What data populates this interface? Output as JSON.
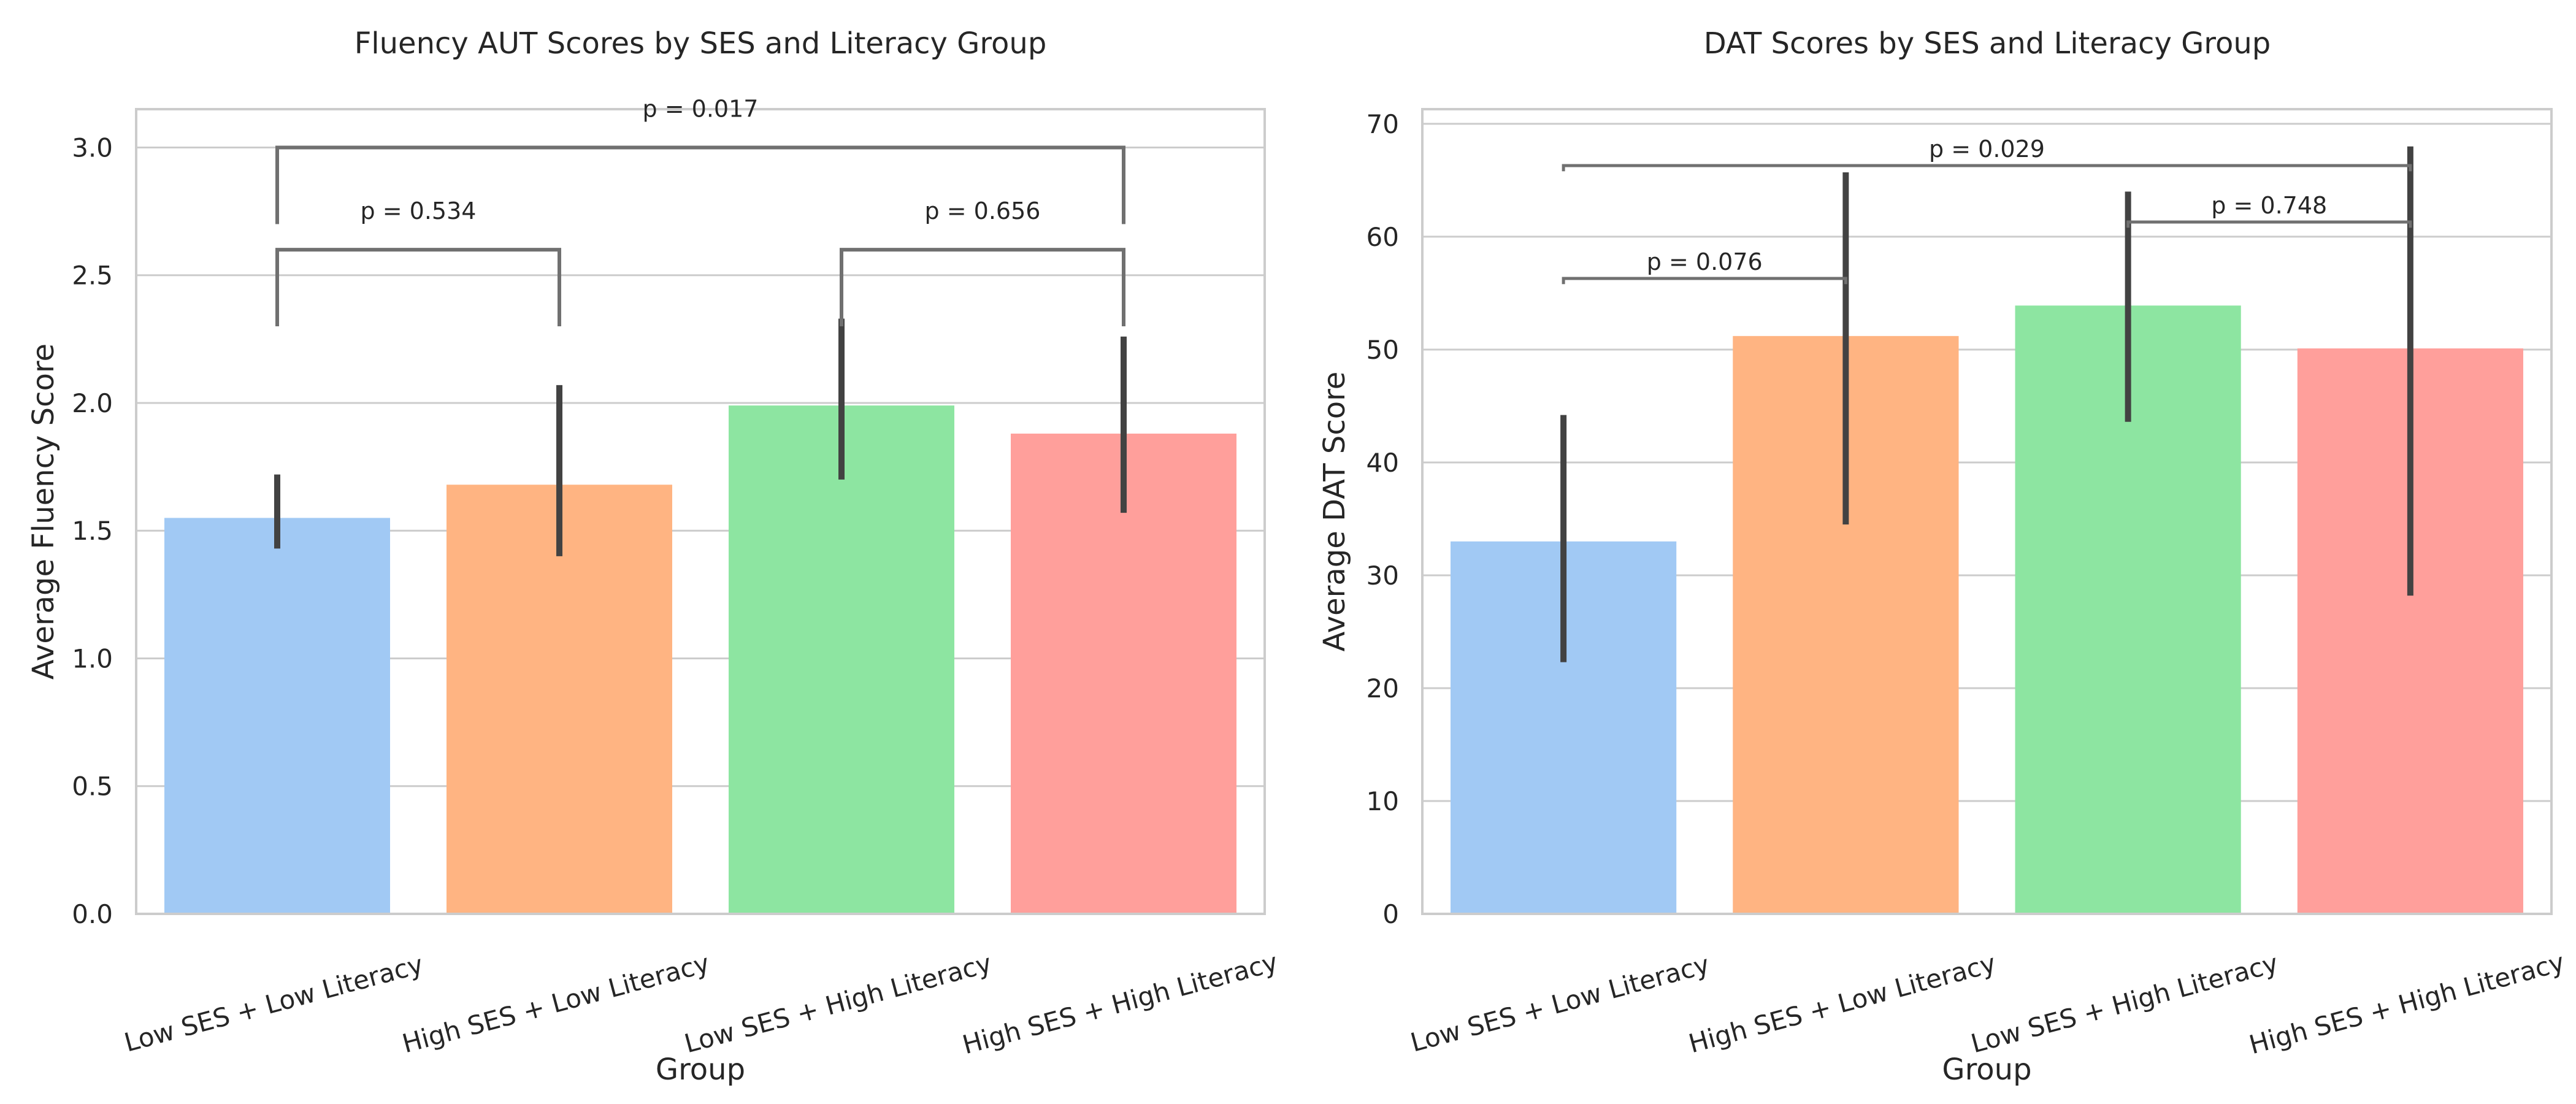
{
  "chart_data": [
    {
      "type": "bar",
      "title": "Fluency AUT Scores by SES and Literacy Group",
      "xlabel": "Group",
      "ylabel": "Average Fluency Score",
      "ylim": [
        0,
        3.15
      ],
      "yticks": [
        0.0,
        0.5,
        1.0,
        1.5,
        2.0,
        2.5,
        3.0
      ],
      "ytick_labels": [
        "0.0",
        "0.5",
        "1.0",
        "1.5",
        "2.0",
        "2.5",
        "3.0"
      ],
      "grid": true,
      "categories": [
        "Low SES + Low Literacy",
        "High SES + Low Literacy",
        "Low SES + High Literacy",
        "High SES + High Literacy"
      ],
      "values": [
        1.55,
        1.68,
        1.99,
        1.88
      ],
      "error_bars": [
        [
          1.43,
          1.72
        ],
        [
          1.4,
          2.07
        ],
        [
          1.7,
          2.33
        ],
        [
          1.57,
          2.26
        ]
      ],
      "colors": [
        "#a1c9f4",
        "#ffb482",
        "#8de5a1",
        "#ff9f9b"
      ],
      "annotations": [
        {
          "from": 0,
          "to": 1,
          "label": "p = 0.534",
          "y": 2.6,
          "ylow": 2.3,
          "style": "bracket"
        },
        {
          "from": 2,
          "to": 3,
          "label": "p = 0.656",
          "y": 2.6,
          "ylow": 2.3,
          "style": "bracket"
        },
        {
          "from": 0,
          "to": 3,
          "label": "p = 0.017",
          "y": 3.0,
          "ylow": 2.7,
          "style": "bracket"
        }
      ]
    },
    {
      "type": "bar",
      "title": "DAT Scores by SES and Literacy Group",
      "xlabel": "Group",
      "ylabel": "Average DAT Score",
      "ylim": [
        0,
        71.3
      ],
      "yticks": [
        0,
        10,
        20,
        30,
        40,
        50,
        60,
        70
      ],
      "ytick_labels": [
        "0",
        "10",
        "20",
        "30",
        "40",
        "50",
        "60",
        "70"
      ],
      "grid": true,
      "categories": [
        "Low SES + Low Literacy",
        "High SES + Low Literacy",
        "Low SES + High Literacy",
        "High SES + High Literacy"
      ],
      "values": [
        33.0,
        51.2,
        53.9,
        50.1
      ],
      "error_bars": [
        [
          22.3,
          44.2
        ],
        [
          34.5,
          65.7
        ],
        [
          43.6,
          64.0
        ],
        [
          28.2,
          68.0
        ]
      ],
      "colors": [
        "#a1c9f4",
        "#ffb482",
        "#8de5a1",
        "#ff9f9b"
      ],
      "annotations": [
        {
          "from": 0,
          "to": 1,
          "label": "p = 0.076",
          "y": 56.3,
          "ylow": 55.8,
          "style": "flat"
        },
        {
          "from": 2,
          "to": 3,
          "label": "p = 0.748",
          "y": 61.3,
          "ylow": 60.8,
          "style": "flat"
        },
        {
          "from": 0,
          "to": 3,
          "label": "p = 0.029",
          "y": 66.3,
          "ylow": 65.8,
          "style": "flat"
        }
      ]
    }
  ]
}
